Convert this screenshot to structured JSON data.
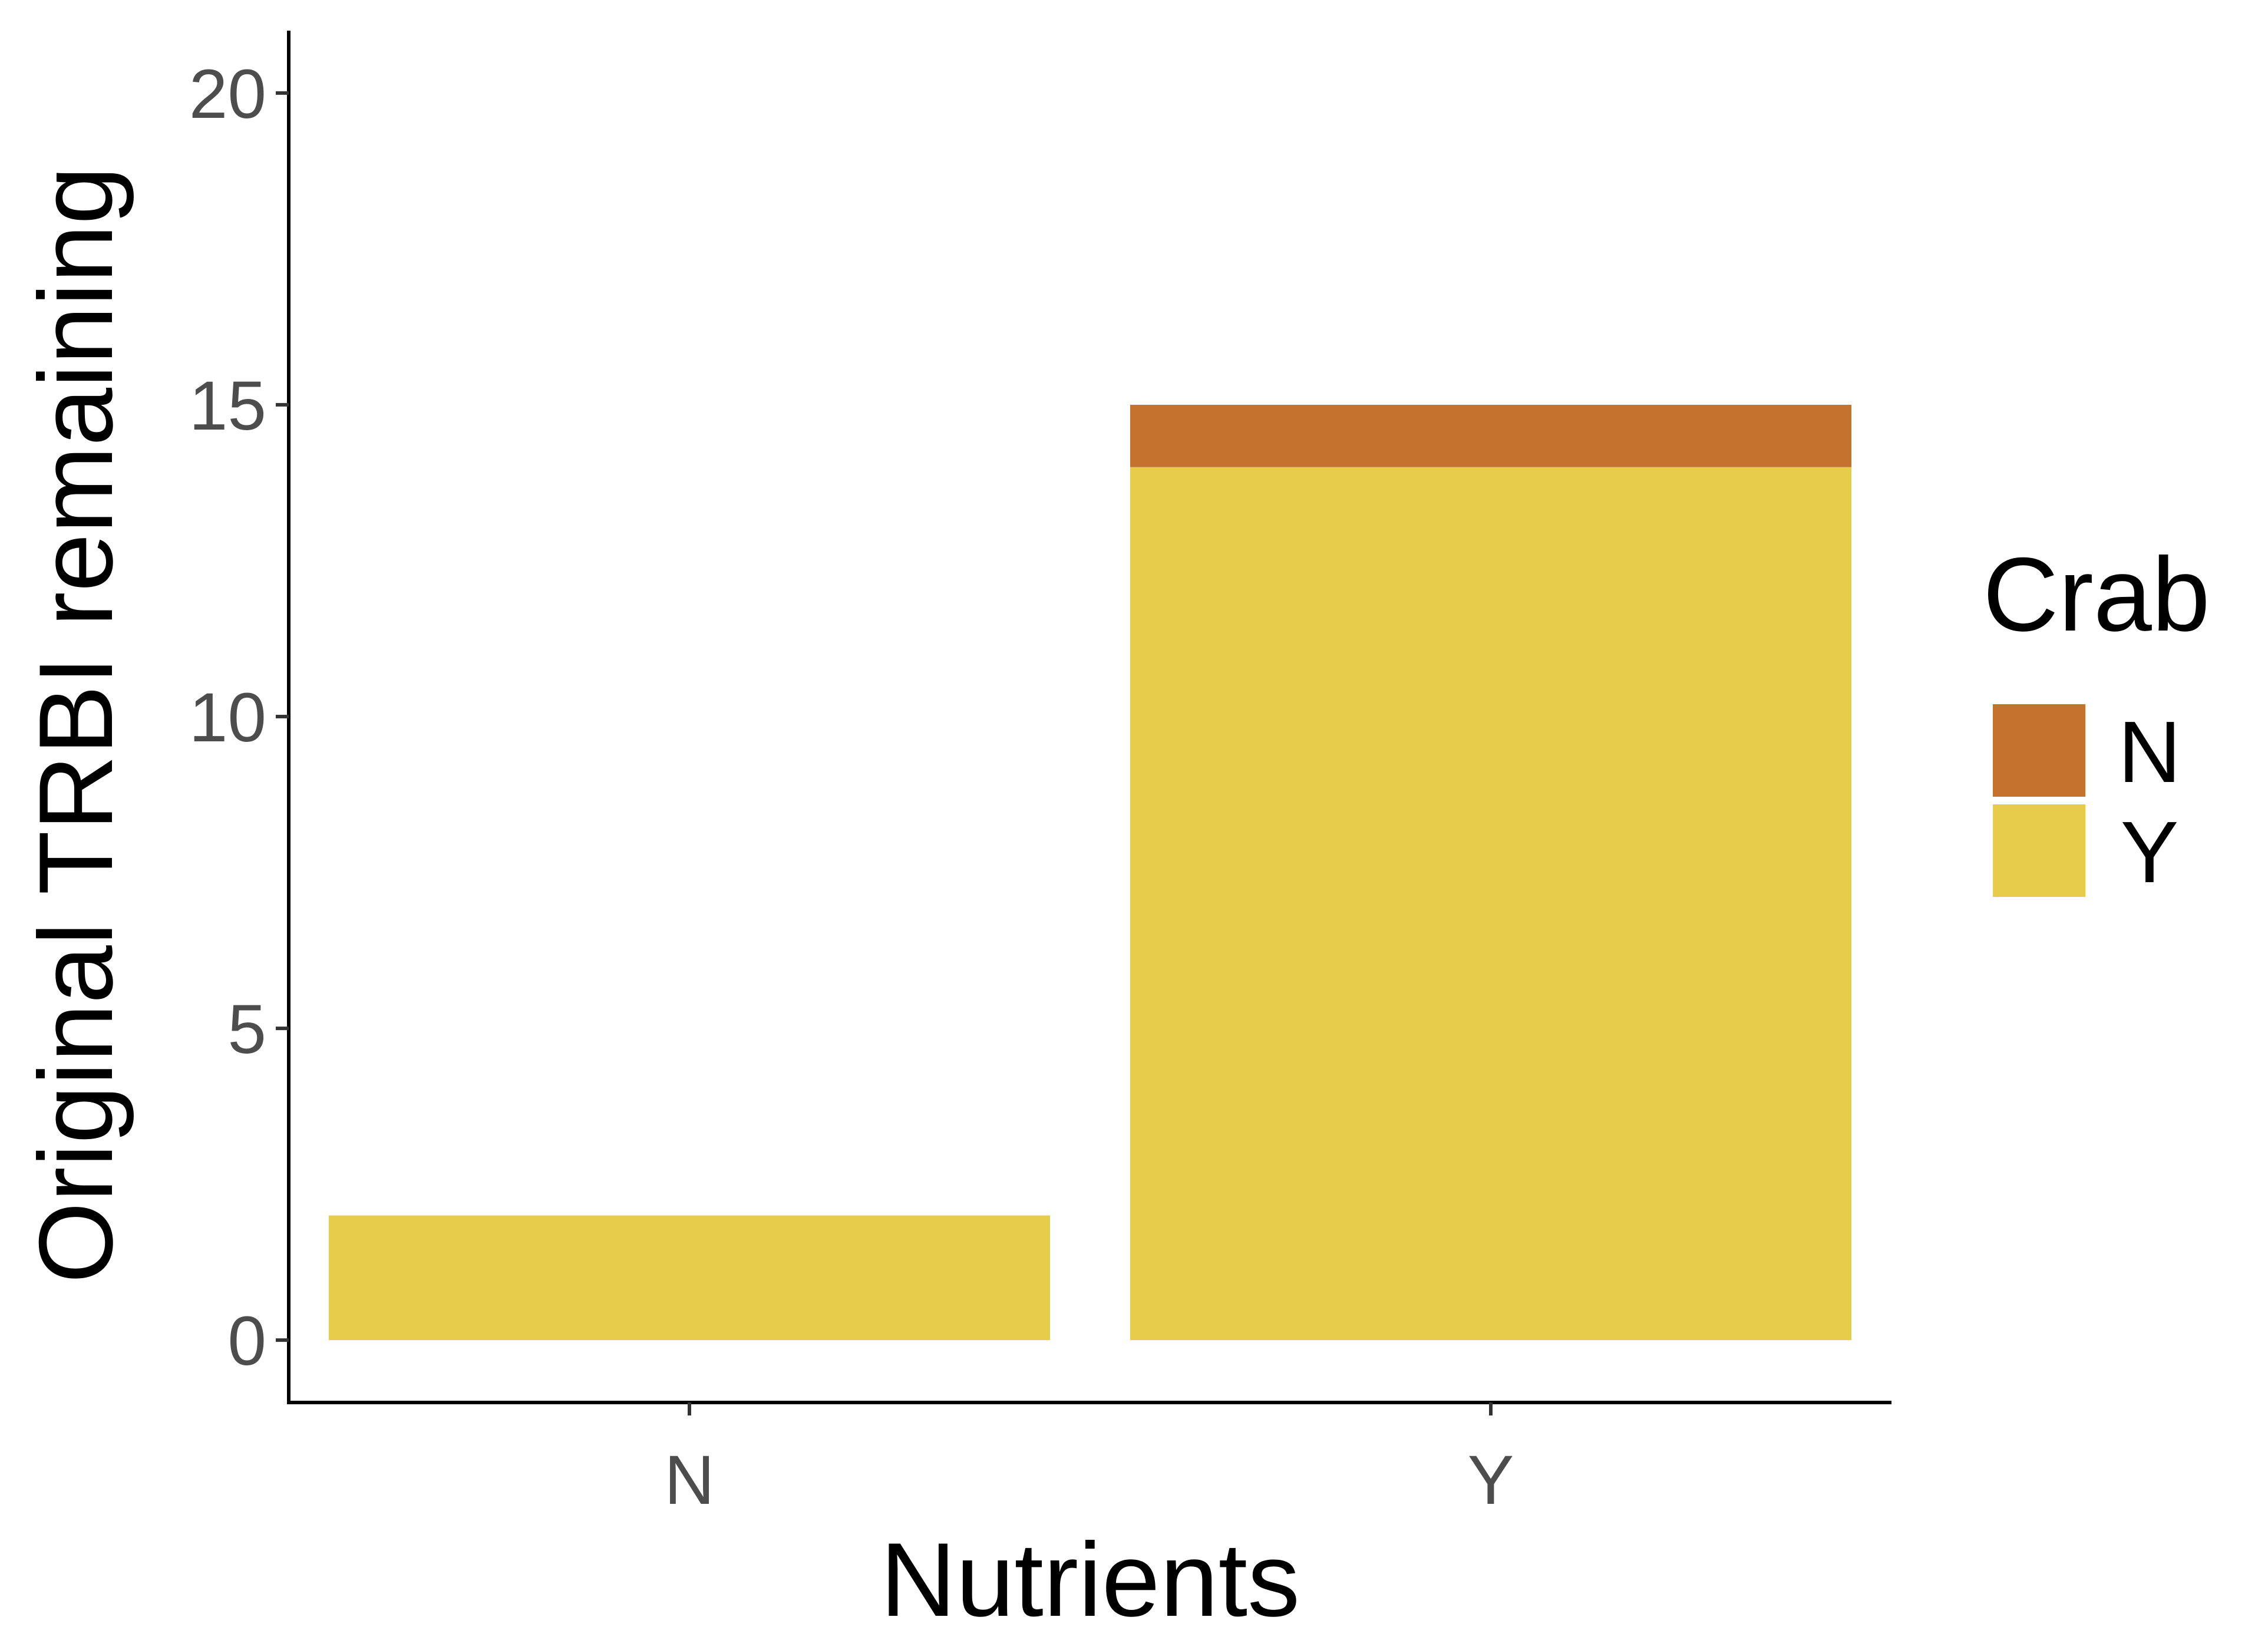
{
  "chart_data": {
    "type": "bar",
    "stacked": true,
    "categories": [
      "N",
      "Y"
    ],
    "series": [
      {
        "name": "N",
        "values": [
          0,
          1
        ],
        "color": "#C5722F"
      },
      {
        "name": "Y",
        "values": [
          2,
          14
        ],
        "color": "#E6CC4A"
      }
    ],
    "xlabel": "Nutrients",
    "ylabel": "Original TRBI remaining",
    "ylim": [
      -1,
      21
    ],
    "yticks": [
      0,
      5,
      10,
      15,
      20
    ],
    "legend": {
      "title": "Crab",
      "position": "right",
      "entries": [
        "N",
        "Y"
      ]
    },
    "grid": false
  }
}
